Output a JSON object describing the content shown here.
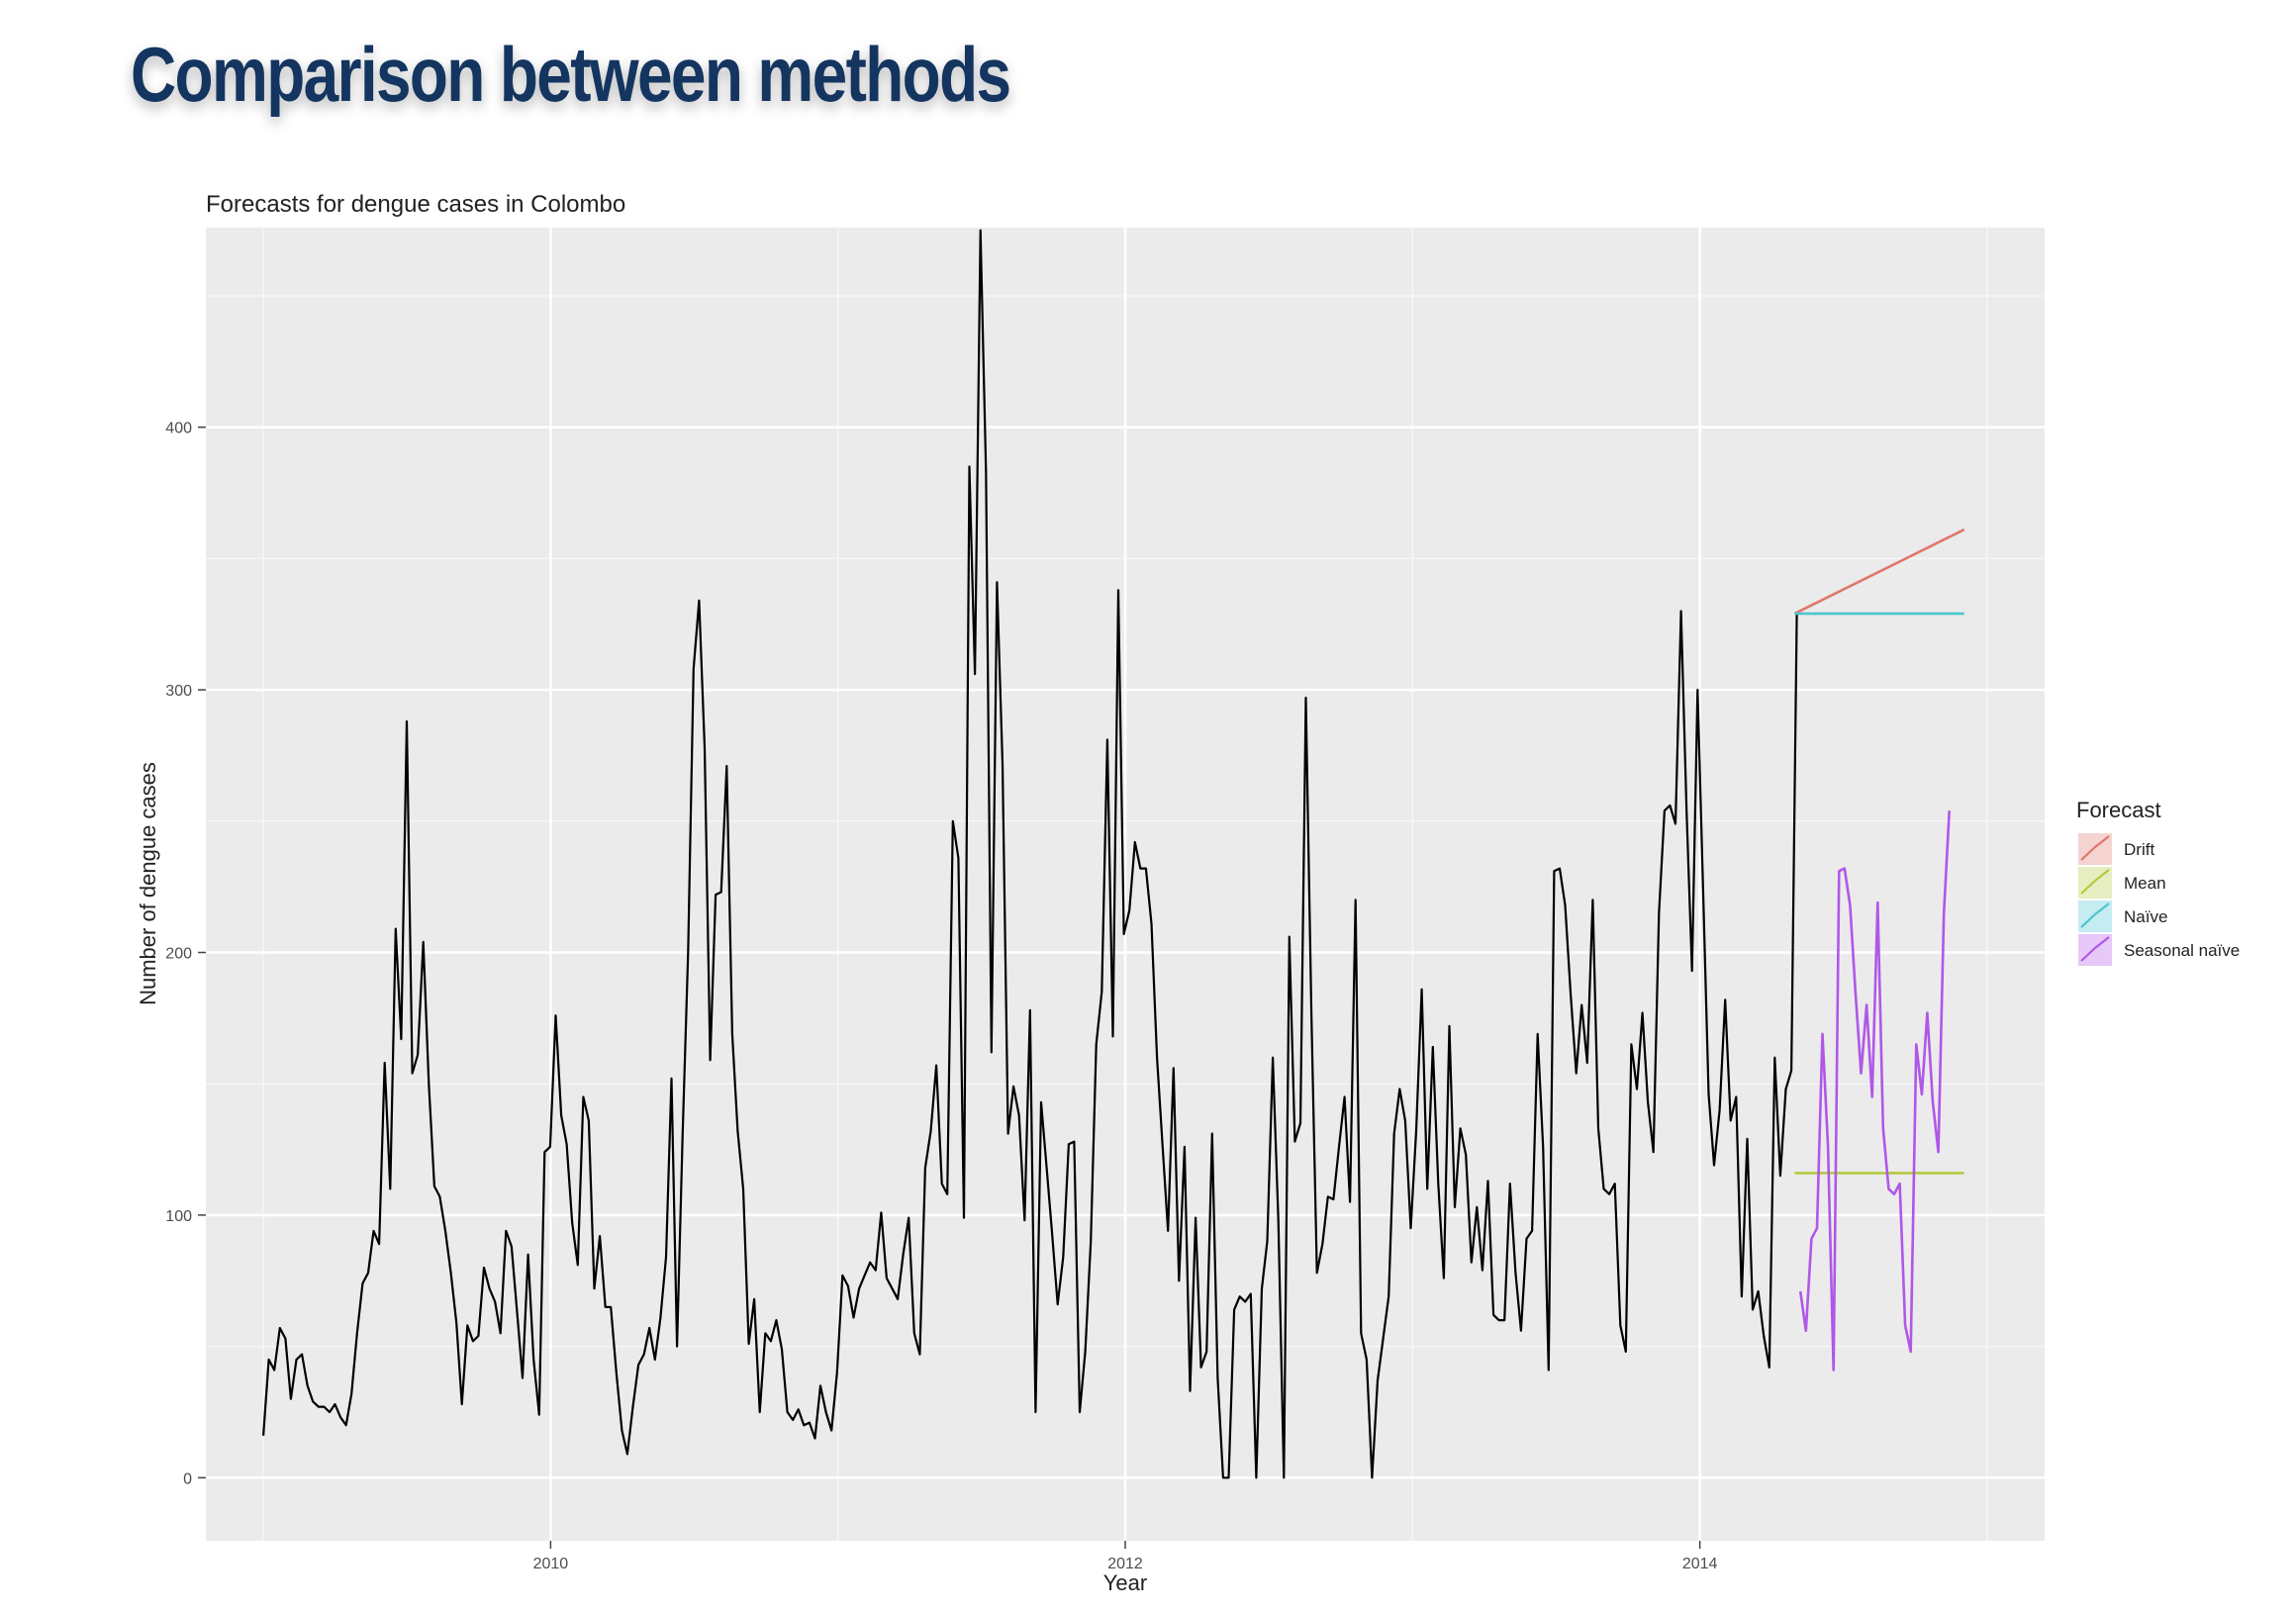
{
  "slide": {
    "title": "Comparison between methods"
  },
  "chart_data": {
    "type": "line",
    "title": "Forecasts for dengue cases in Colombo",
    "xlabel": "Year",
    "ylabel": "Number of dengue cases",
    "xlim": [
      2008.8,
      2015.2
    ],
    "ylim": [
      -24,
      476
    ],
    "x_ticks": [
      2010,
      2012,
      2014
    ],
    "x_tick_labels": [
      "2010",
      "2012",
      "2014"
    ],
    "y_ticks": [
      0,
      100,
      200,
      300,
      400
    ],
    "y_tick_labels": [
      "0",
      "100",
      "200",
      "300",
      "400"
    ],
    "grid": true,
    "legend": {
      "title": "Forecast",
      "placement": "right",
      "entries": [
        {
          "label": "Drift",
          "color": "#e0766c"
        },
        {
          "label": "Mean",
          "color": "#b5c93f"
        },
        {
          "label": "Naïve",
          "color": "#4cc5cf"
        },
        {
          "label": "Seasonal naïve",
          "color": "#b057e8"
        }
      ]
    },
    "series": [
      {
        "name": "",
        "color": "#000000",
        "x_start": 2009.0,
        "x_step": 0.0192,
        "values": [
          16,
          45,
          41,
          57,
          53,
          30,
          45,
          47,
          35,
          29,
          27,
          27,
          25,
          28,
          23,
          20,
          32,
          55,
          74,
          78,
          94,
          89,
          158,
          110,
          209,
          167,
          288,
          154,
          161,
          204,
          150,
          111,
          107,
          94,
          78,
          59,
          28,
          58,
          52,
          54,
          80,
          72,
          67,
          55,
          94,
          88,
          63,
          38,
          85,
          45,
          24,
          124,
          126,
          176,
          138,
          127,
          97,
          81,
          145,
          136,
          72,
          92,
          65,
          65,
          40,
          18,
          9,
          27,
          43,
          47,
          57,
          45,
          61,
          84,
          152,
          50,
          130,
          200,
          308,
          334,
          278,
          159,
          222,
          223,
          271,
          169,
          132,
          110,
          51,
          68,
          25,
          55,
          52,
          60,
          49,
          25,
          22,
          26,
          20,
          21,
          15,
          35,
          25,
          18,
          40,
          77,
          73,
          61,
          72,
          77,
          82,
          79,
          101,
          76,
          72,
          68,
          85,
          99,
          55,
          47,
          118,
          132,
          157,
          112,
          108,
          250,
          236,
          99,
          385,
          306,
          475,
          383,
          162,
          341,
          272,
          131,
          149,
          138,
          98,
          178,
          25,
          143,
          118,
          93,
          66,
          84,
          127,
          128,
          25,
          48,
          90,
          165,
          185,
          281,
          168,
          338,
          207,
          216,
          242,
          232,
          232,
          211,
          160,
          127,
          94,
          156,
          75,
          126,
          33,
          99,
          42,
          48,
          131,
          38,
          0,
          0,
          64,
          69,
          67,
          70,
          0,
          72,
          90,
          160,
          98,
          0,
          206,
          128,
          135,
          297,
          177,
          78,
          89,
          107,
          106,
          126,
          145,
          105,
          220,
          55,
          45,
          0,
          37,
          53,
          69,
          131,
          148,
          136,
          95,
          132,
          186,
          110,
          164,
          112,
          76,
          172,
          103,
          133,
          123,
          82,
          103,
          79,
          113,
          62,
          60,
          60,
          112,
          78,
          56,
          91,
          94,
          169,
          126,
          41,
          231,
          232,
          218,
          184,
          154,
          180,
          158,
          220,
          133,
          110,
          108,
          112,
          58,
          48,
          165,
          148,
          177,
          143,
          124,
          215,
          254,
          256,
          249,
          330,
          254,
          193,
          300,
          224,
          146,
          119,
          140,
          182,
          136,
          145,
          69,
          129,
          64,
          71,
          54,
          42,
          160,
          115,
          148,
          155,
          329
        ]
      },
      {
        "name": "Drift",
        "color": "#e0766c",
        "x": [
          2014.33,
          2014.92
        ],
        "values": [
          329,
          361
        ]
      },
      {
        "name": "Mean",
        "color": "#b5c93f",
        "x": [
          2014.33,
          2014.92
        ],
        "values": [
          116,
          116
        ]
      },
      {
        "name": "Naïve",
        "color": "#4cc5cf",
        "x": [
          2014.33,
          2014.92
        ],
        "values": [
          329,
          329
        ]
      },
      {
        "name": "Seasonal naïve",
        "color": "#b057e8",
        "x_start": 2014.35,
        "x_step": 0.0192,
        "values": [
          71,
          56,
          91,
          95,
          169,
          126,
          41,
          231,
          232,
          218,
          184,
          154,
          180,
          145,
          219,
          133,
          110,
          108,
          112,
          58,
          48,
          165,
          146,
          177,
          143,
          124,
          215,
          254
        ]
      }
    ]
  }
}
